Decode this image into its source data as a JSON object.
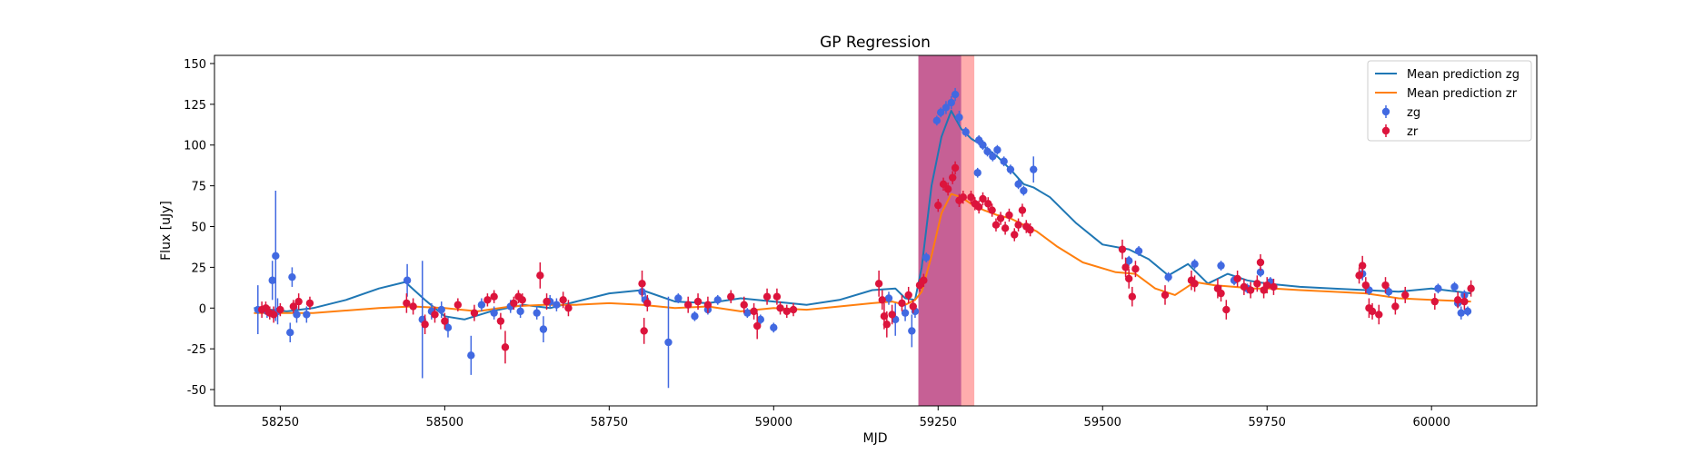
{
  "chart_data": {
    "type": "scatter",
    "title": "GP Regression",
    "xlabel": "MJD",
    "ylabel": "Flux [uJy]",
    "xlim": [
      58150,
      60160
    ],
    "ylim": [
      -60,
      155
    ],
    "x_ticks": [
      58250,
      58500,
      58750,
      59000,
      59250,
      59500,
      59750,
      60000
    ],
    "y_ticks": [
      -50,
      -25,
      0,
      25,
      50,
      75,
      100,
      125,
      150
    ],
    "grid": false,
    "legend_position": "top-right",
    "shaded_regions": [
      {
        "x0": 59220,
        "x1": 59285,
        "color": "#ff4500"
      },
      {
        "x0": 59220,
        "x1": 59305,
        "color": "#ff6a6a"
      }
    ],
    "series": [
      {
        "name": "Mean prediction zg",
        "kind": "line",
        "color": "#1f77b4",
        "x": [
          58210,
          58260,
          58300,
          58350,
          58400,
          58440,
          58470,
          58500,
          58530,
          58570,
          58620,
          58660,
          58700,
          58750,
          58800,
          58850,
          58900,
          58950,
          59000,
          59050,
          59100,
          59150,
          59185,
          59200,
          59215,
          59225,
          59240,
          59255,
          59270,
          59285,
          59300,
          59320,
          59340,
          59360,
          59380,
          59395,
          59420,
          59460,
          59500,
          59540,
          59570,
          59600,
          59630,
          59660,
          59690,
          59720,
          59750,
          59800,
          59850,
          59900,
          59950,
          60000,
          60040,
          60060
        ],
        "y": [
          0,
          -2,
          0,
          5,
          12,
          16,
          5,
          -5,
          -7,
          -2,
          2,
          0,
          4,
          9,
          11,
          4,
          3,
          6,
          4,
          2,
          5,
          11,
          12,
          6,
          5,
          25,
          75,
          105,
          121,
          110,
          104,
          99,
          93,
          85,
          76,
          74,
          68,
          52,
          39,
          36,
          30,
          20,
          27,
          15,
          21,
          17,
          15,
          13,
          12,
          11,
          10,
          12,
          10,
          9
        ]
      },
      {
        "name": "Mean prediction zr",
        "kind": "line",
        "color": "#ff7f0e",
        "x": [
          58210,
          58300,
          58400,
          58450,
          58500,
          58550,
          58600,
          58650,
          58700,
          58750,
          58800,
          58850,
          58900,
          58950,
          59000,
          59050,
          59100,
          59150,
          59180,
          59200,
          59215,
          59225,
          59240,
          59255,
          59270,
          59285,
          59300,
          59320,
          59340,
          59360,
          59380,
          59400,
          59430,
          59470,
          59520,
          59550,
          59580,
          59610,
          59640,
          59670,
          59700,
          59730,
          59760,
          59800,
          59850,
          59900,
          59950,
          60000,
          60060
        ],
        "y": [
          -3,
          -3,
          0,
          1,
          0,
          -2,
          1,
          2,
          2,
          3,
          2,
          0,
          1,
          -2,
          0,
          -1,
          1,
          3,
          4,
          2,
          5,
          10,
          32,
          58,
          70,
          68,
          64,
          60,
          57,
          55,
          51,
          47,
          38,
          28,
          22,
          21,
          12,
          8,
          16,
          14,
          13,
          12,
          12,
          11,
          10,
          9,
          6,
          5,
          4
        ]
      },
      {
        "name": "zg",
        "kind": "errorbar",
        "color": "#4169e1",
        "points": [
          [
            58216,
            -1,
            15
          ],
          [
            58230,
            -2,
            4
          ],
          [
            58238,
            17,
            12
          ],
          [
            58243,
            32,
            40
          ],
          [
            58246,
            -2,
            8
          ],
          [
            58265,
            -15,
            6
          ],
          [
            58268,
            19,
            6
          ],
          [
            58275,
            -4,
            5
          ],
          [
            58290,
            -4,
            5
          ],
          [
            58443,
            17,
            10
          ],
          [
            58466,
            -7,
            36
          ],
          [
            58480,
            -2,
            5
          ],
          [
            58495,
            -1,
            5
          ],
          [
            58505,
            -12,
            6
          ],
          [
            58540,
            -29,
            12
          ],
          [
            58556,
            2,
            4
          ],
          [
            58575,
            -3,
            4
          ],
          [
            58600,
            1,
            4
          ],
          [
            58615,
            -2,
            4
          ],
          [
            58640,
            -3,
            4
          ],
          [
            58650,
            -13,
            8
          ],
          [
            58660,
            4,
            4
          ],
          [
            58670,
            2,
            4
          ],
          [
            58800,
            10,
            6
          ],
          [
            58805,
            5,
            4
          ],
          [
            58840,
            -21,
            28
          ],
          [
            58855,
            6,
            3
          ],
          [
            58880,
            -5,
            3
          ],
          [
            58900,
            -1,
            3
          ],
          [
            58915,
            5,
            3
          ],
          [
            58960,
            -3,
            3
          ],
          [
            58980,
            -7,
            3
          ],
          [
            59000,
            -12,
            3
          ],
          [
            59175,
            6,
            4
          ],
          [
            59185,
            -7,
            10
          ],
          [
            59200,
            -3,
            5
          ],
          [
            59210,
            -14,
            10
          ],
          [
            59215,
            -2,
            4
          ],
          [
            59232,
            31,
            3
          ],
          [
            59248,
            115,
            3
          ],
          [
            59254,
            120,
            3
          ],
          [
            59262,
            123,
            4
          ],
          [
            59270,
            126,
            4
          ],
          [
            59276,
            131,
            4
          ],
          [
            59282,
            117,
            4
          ],
          [
            59292,
            108,
            3
          ],
          [
            59310,
            83,
            3
          ],
          [
            59312,
            103,
            3
          ],
          [
            59318,
            100,
            3
          ],
          [
            59325,
            96,
            3
          ],
          [
            59333,
            93,
            3
          ],
          [
            59340,
            97,
            3
          ],
          [
            59350,
            90,
            3
          ],
          [
            59360,
            85,
            3
          ],
          [
            59372,
            76,
            3
          ],
          [
            59380,
            72,
            3
          ],
          [
            59395,
            85,
            8
          ],
          [
            59540,
            29,
            3
          ],
          [
            59555,
            35,
            3
          ],
          [
            59600,
            19,
            3
          ],
          [
            59640,
            27,
            3
          ],
          [
            59680,
            26,
            3
          ],
          [
            59700,
            17,
            3
          ],
          [
            59720,
            12,
            3
          ],
          [
            59740,
            22,
            3
          ],
          [
            59755,
            16,
            3
          ],
          [
            59895,
            21,
            4
          ],
          [
            59905,
            11,
            3
          ],
          [
            59935,
            10,
            3
          ],
          [
            60010,
            12,
            3
          ],
          [
            60035,
            13,
            3
          ],
          [
            60040,
            3,
            3
          ],
          [
            60045,
            -3,
            4
          ],
          [
            60050,
            8,
            3
          ],
          [
            60055,
            -2,
            3
          ]
        ]
      },
      {
        "name": "zr",
        "kind": "errorbar",
        "color": "#dc143c",
        "points": [
          [
            58222,
            -1,
            5
          ],
          [
            58228,
            0,
            4
          ],
          [
            58234,
            -3,
            4
          ],
          [
            58240,
            -4,
            5
          ],
          [
            58250,
            -1,
            4
          ],
          [
            58270,
            1,
            4
          ],
          [
            58278,
            4,
            5
          ],
          [
            58295,
            3,
            4
          ],
          [
            58442,
            3,
            6
          ],
          [
            58452,
            1,
            5
          ],
          [
            58470,
            -10,
            6
          ],
          [
            58485,
            -4,
            5
          ],
          [
            58500,
            -8,
            5
          ],
          [
            58520,
            2,
            4
          ],
          [
            58545,
            -3,
            5
          ],
          [
            58565,
            5,
            4
          ],
          [
            58575,
            7,
            4
          ],
          [
            58585,
            -8,
            5
          ],
          [
            58592,
            -24,
            10
          ],
          [
            58605,
            3,
            4
          ],
          [
            58612,
            7,
            4
          ],
          [
            58618,
            5,
            4
          ],
          [
            58645,
            20,
            8
          ],
          [
            58655,
            4,
            5
          ],
          [
            58680,
            5,
            5
          ],
          [
            58688,
            0,
            5
          ],
          [
            58800,
            15,
            8
          ],
          [
            58803,
            -14,
            8
          ],
          [
            58808,
            3,
            5
          ],
          [
            58870,
            2,
            5
          ],
          [
            58885,
            4,
            5
          ],
          [
            58900,
            2,
            5
          ],
          [
            58935,
            7,
            4
          ],
          [
            58955,
            2,
            5
          ],
          [
            58970,
            -2,
            5
          ],
          [
            58975,
            -11,
            8
          ],
          [
            58990,
            7,
            5
          ],
          [
            59005,
            7,
            5
          ],
          [
            59010,
            0,
            4
          ],
          [
            59020,
            -2,
            4
          ],
          [
            59030,
            -1,
            4
          ],
          [
            59160,
            15,
            8
          ],
          [
            59165,
            5,
            6
          ],
          [
            59168,
            -5,
            8
          ],
          [
            59172,
            -10,
            8
          ],
          [
            59180,
            -4,
            6
          ],
          [
            59195,
            3,
            5
          ],
          [
            59205,
            8,
            5
          ],
          [
            59212,
            1,
            4
          ],
          [
            59222,
            14,
            4
          ],
          [
            59228,
            17,
            4
          ],
          [
            59250,
            63,
            4
          ],
          [
            59258,
            76,
            4
          ],
          [
            59265,
            73,
            4
          ],
          [
            59272,
            80,
            4
          ],
          [
            59276,
            86,
            4
          ],
          [
            59282,
            66,
            4
          ],
          [
            59288,
            68,
            4
          ],
          [
            59300,
            68,
            4
          ],
          [
            59306,
            64,
            4
          ],
          [
            59312,
            62,
            4
          ],
          [
            59318,
            67,
            4
          ],
          [
            59326,
            64,
            4
          ],
          [
            59332,
            60,
            4
          ],
          [
            59338,
            51,
            4
          ],
          [
            59345,
            55,
            4
          ],
          [
            59352,
            49,
            4
          ],
          [
            59358,
            57,
            4
          ],
          [
            59366,
            45,
            4
          ],
          [
            59372,
            51,
            4
          ],
          [
            59378,
            60,
            4
          ],
          [
            59384,
            50,
            4
          ],
          [
            59390,
            48,
            4
          ],
          [
            59530,
            36,
            6
          ],
          [
            59535,
            25,
            6
          ],
          [
            59540,
            18,
            6
          ],
          [
            59545,
            7,
            6
          ],
          [
            59550,
            24,
            5
          ],
          [
            59595,
            8,
            6
          ],
          [
            59635,
            17,
            6
          ],
          [
            59640,
            15,
            5
          ],
          [
            59675,
            12,
            6
          ],
          [
            59680,
            9,
            5
          ],
          [
            59688,
            -1,
            6
          ],
          [
            59705,
            18,
            5
          ],
          [
            59715,
            13,
            5
          ],
          [
            59725,
            11,
            5
          ],
          [
            59735,
            15,
            5
          ],
          [
            59740,
            28,
            5
          ],
          [
            59745,
            11,
            5
          ],
          [
            59750,
            14,
            5
          ],
          [
            59760,
            13,
            5
          ],
          [
            59890,
            20,
            5
          ],
          [
            59895,
            26,
            6
          ],
          [
            59900,
            14,
            5
          ],
          [
            59905,
            0,
            6
          ],
          [
            59910,
            -2,
            5
          ],
          [
            59920,
            -4,
            6
          ],
          [
            59930,
            14,
            5
          ],
          [
            59945,
            1,
            5
          ],
          [
            59960,
            8,
            5
          ],
          [
            60005,
            4,
            5
          ],
          [
            60040,
            5,
            5
          ],
          [
            60050,
            4,
            5
          ],
          [
            60060,
            12,
            5
          ]
        ]
      }
    ]
  }
}
